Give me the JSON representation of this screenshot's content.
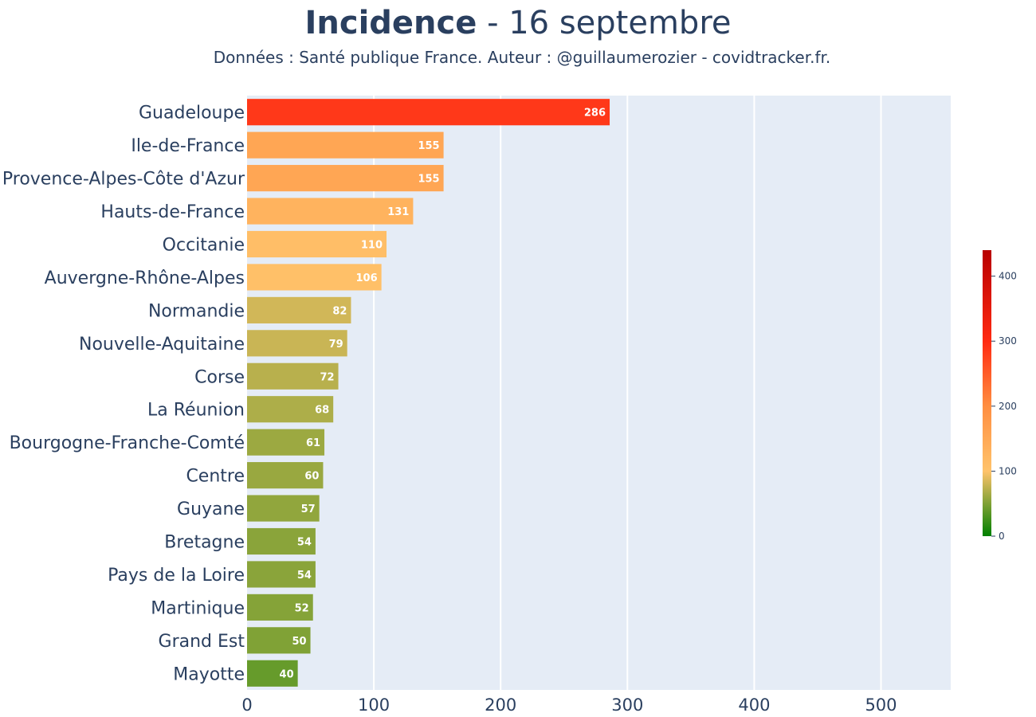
{
  "title": {
    "bold": "Incidence",
    "rest": " - 16 septembre"
  },
  "subtitle": "Données : Santé publique France. Auteur : @guillaumerozier - covidtracker.fr.",
  "chart_data": {
    "type": "bar",
    "orientation": "horizontal",
    "categories": [
      "Guadeloupe",
      "Ile-de-France",
      "Provence-Alpes-Côte d'Azur",
      "Hauts-de-France",
      "Occitanie",
      "Auvergne-Rhône-Alpes",
      "Normandie",
      "Nouvelle-Aquitaine",
      "Corse",
      "La Réunion",
      "Bourgogne-Franche-Comté",
      "Centre",
      "Guyane",
      "Bretagne",
      "Pays de la Loire",
      "Martinique",
      "Grand Est",
      "Mayotte"
    ],
    "values": [
      286,
      155,
      155,
      131,
      110,
      106,
      82,
      79,
      72,
      68,
      61,
      60,
      57,
      54,
      54,
      52,
      50,
      40
    ],
    "data_labels": [
      "286",
      "155",
      "155",
      "131",
      "110",
      "106",
      "82",
      "79",
      "72",
      "68",
      "61",
      "60",
      "57",
      "54",
      "54",
      "52",
      "50",
      "40"
    ],
    "xlim": [
      0,
      555
    ],
    "xticks": [
      0,
      100,
      200,
      300,
      400,
      500
    ],
    "xtick_labels": [
      "0",
      "100",
      "200",
      "300",
      "400",
      "500"
    ],
    "grid": true,
    "plot_background": "#e5ecf6",
    "colorscale": {
      "range": [
        0,
        440
      ],
      "stops": [
        {
          "value": 0,
          "color": "#008000"
        },
        {
          "value": 100,
          "color": "#ffc36b"
        },
        {
          "value": 200,
          "color": "#ff8e41"
        },
        {
          "value": 300,
          "color": "#ff2a12"
        },
        {
          "value": 440,
          "color": "#b80000"
        }
      ],
      "ticks": [
        0,
        100,
        200,
        300,
        400
      ],
      "tick_labels": [
        "0",
        "100",
        "200",
        "300",
        "400"
      ]
    }
  }
}
